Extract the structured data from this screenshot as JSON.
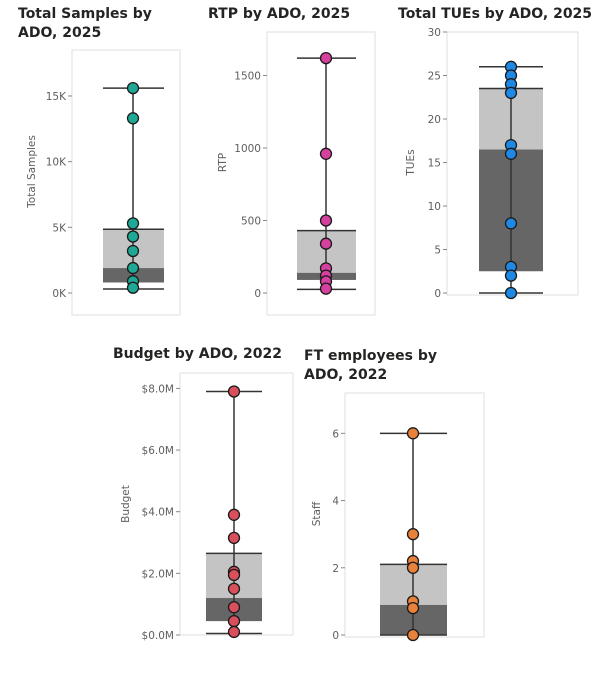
{
  "chart_data": [
    {
      "type": "boxplot",
      "title": "Total Samples by ADO, 2025",
      "ylabel": "Total Samples",
      "ylim": [
        0,
        18500
      ],
      "yticks": [
        0,
        5000,
        10000,
        15000
      ],
      "ytick_labels": [
        "0K",
        "5K",
        "10K",
        "15K"
      ],
      "box": {
        "whisker_low": 300,
        "q1": 800,
        "median": 1900,
        "q3": 4850,
        "whisker_high": 15600
      },
      "points": [
        15600,
        13300,
        5300,
        4300,
        3200,
        1900,
        900,
        400
      ],
      "point_color": "#1fa896"
    },
    {
      "type": "boxplot",
      "title": "RTP by ADO, 2025",
      "ylabel": "RTP",
      "ylim": [
        0,
        1800
      ],
      "yticks": [
        0,
        500,
        1000,
        1500
      ],
      "ytick_labels": [
        "0",
        "500",
        "1000",
        "1500"
      ],
      "box": {
        "whisker_low": 25,
        "q1": 90,
        "median": 140,
        "q3": 430,
        "whisker_high": 1620
      },
      "points": [
        1620,
        960,
        500,
        340,
        170,
        120,
        80,
        30
      ],
      "point_color": "#d6409f"
    },
    {
      "type": "boxplot",
      "title": "Total TUEs by ADO, 2025",
      "ylabel": "TUEs",
      "ylim": [
        0,
        30
      ],
      "yticks": [
        0,
        5,
        10,
        15,
        20,
        25,
        30
      ],
      "ytick_labels": [
        "0",
        "5",
        "10",
        "15",
        "20",
        "25",
        "30"
      ],
      "box": {
        "whisker_low": 0,
        "q1": 2.5,
        "median": 16.5,
        "q3": 23.5,
        "whisker_high": 26
      },
      "points": [
        26,
        25,
        24,
        23,
        17,
        16,
        8,
        3,
        2,
        0
      ],
      "point_color": "#1e88e5"
    },
    {
      "type": "boxplot",
      "title": "Budget by ADO, 2022",
      "ylabel": "Budget",
      "ylim": [
        0,
        8500000
      ],
      "yticks": [
        0,
        2000000,
        4000000,
        6000000,
        8000000
      ],
      "ytick_labels": [
        "$0.0M",
        "$2.0M",
        "$4.0M",
        "$6.0M",
        "$8.0M"
      ],
      "box": {
        "whisker_low": 50000,
        "q1": 450000,
        "median": 1200000,
        "q3": 2650000,
        "whisker_high": 7900000
      },
      "points": [
        7900000,
        3900000,
        3150000,
        2050000,
        1950000,
        1500000,
        900000,
        450000,
        100000
      ],
      "point_color": "#d94f5c"
    },
    {
      "type": "boxplot",
      "title": "FT employees by ADO, 2022",
      "ylabel": "Staff",
      "ylim": [
        0,
        7.2
      ],
      "yticks": [
        0,
        2,
        4,
        6
      ],
      "ytick_labels": [
        "0",
        "2",
        "4",
        "6"
      ],
      "box": {
        "whisker_low": 0,
        "q1": 0,
        "median": 0.9,
        "q3": 2.1,
        "whisker_high": 6
      },
      "points": [
        6,
        3,
        2.2,
        2,
        1,
        0.8,
        0
      ],
      "point_color": "#e8813a"
    }
  ]
}
